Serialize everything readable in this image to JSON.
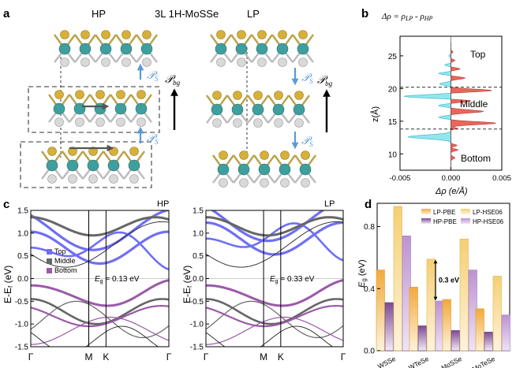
{
  "figure": {
    "panel_labels": [
      "a",
      "b",
      "c",
      "d"
    ],
    "colors": {
      "mo": "#3f9e9e",
      "s": "#d6b03a",
      "se": "#d9d9d9",
      "arrow_blue": "#5b9bd5",
      "top": "#6f6ff5",
      "middle": "#666666",
      "bottom": "#9b59a8",
      "red_fill": "#e8665c",
      "cyan_fill": "#8ee8ee",
      "lp_pbe": "#f2b84b",
      "lp_hse": "#f7d98a",
      "hp_pbe": "#8c5a9e",
      "hp_hse": "#c7a3d8"
    }
  },
  "panel_a": {
    "title": "3L 1H-MoSSe",
    "hp_label": "HP",
    "lp_label": "LP",
    "ps_symbol": "𝒫",
    "ps_sub": "S",
    "pbg_symbol": "𝒫",
    "pbg_sub": "bg"
  },
  "panel_b": {
    "title_parts": [
      "Δρ = ρ",
      "LP",
      " - ρ",
      "HP"
    ],
    "ylabel": "z(Å)",
    "xlabel": "Δρ (e/Å)",
    "xticks": [
      "-0.005",
      "0.000",
      "0.005"
    ],
    "yticks": [
      "10",
      "15",
      "20",
      "25"
    ],
    "region_labels": [
      "Top",
      "Middle",
      "Bottom"
    ],
    "dashed_z": [
      13.8,
      20.2
    ],
    "ylim": [
      7.5,
      28
    ],
    "xlim": [
      -0.005,
      0.005
    ]
  },
  "panel_c": {
    "ylabel": "E-E",
    "ylabel_sub": "f",
    "ylabel_unit": " (eV)",
    "yticks": [
      "1.5",
      "1.0",
      "0.5",
      "0.0",
      "-0.5",
      "-1.0",
      "-1.5"
    ],
    "ylim": [
      -1.5,
      1.5
    ],
    "kpath": [
      "Γ",
      "M",
      "K",
      "Γ"
    ],
    "hp": {
      "label": "HP",
      "gap_label": "E",
      "gap_sub": "g",
      "gap_value": " = 0.13 eV"
    },
    "lp": {
      "label": "LP",
      "gap_label": "E",
      "gap_sub": "g",
      "gap_value": " = 0.33 eV"
    },
    "legend": [
      "Top",
      "Middle",
      "Bottom"
    ]
  },
  "chart_data": {
    "type": "bar",
    "title": "",
    "categories": [
      "WSSe",
      "WTeSe",
      "MoSSe",
      "MoTeSe"
    ],
    "ylabel": "E_g (eV)",
    "ylim": [
      0.0,
      0.95
    ],
    "yticks": [
      "0.0",
      "0.4",
      "0.8"
    ],
    "series": [
      {
        "name": "LP-PBE",
        "values": [
          0.52,
          0.41,
          0.33,
          0.27
        ]
      },
      {
        "name": "HP-PBE",
        "values": [
          0.31,
          0.16,
          0.13,
          0.12
        ]
      },
      {
        "name": "LP-HSE06",
        "values": [
          0.93,
          0.59,
          0.72,
          0.48
        ]
      },
      {
        "name": "HP-HSE06",
        "values": [
          0.74,
          0.32,
          0.52,
          0.23
        ]
      }
    ],
    "annotation": "0.3 eV",
    "legend": [
      "LP-PBE",
      "LP-HSE06",
      "HP-PBE",
      "HP-HSE06"
    ]
  }
}
